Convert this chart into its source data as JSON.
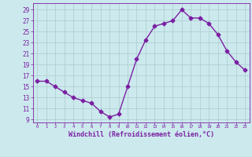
{
  "x": [
    0,
    1,
    2,
    3,
    4,
    5,
    6,
    7,
    8,
    9,
    10,
    11,
    12,
    13,
    14,
    15,
    16,
    17,
    18,
    19,
    20,
    21,
    22,
    23
  ],
  "y": [
    16.0,
    16.0,
    15.0,
    14.0,
    13.0,
    12.5,
    12.0,
    10.5,
    9.5,
    10.0,
    15.0,
    20.0,
    23.5,
    26.0,
    26.5,
    27.0,
    29.0,
    27.5,
    27.5,
    26.5,
    24.5,
    21.5,
    19.5,
    18.0
  ],
  "line_color": "#7B1FA2",
  "marker": "D",
  "markersize": 2.5,
  "linewidth": 1.0,
  "xlabel": "Windchill (Refroidissement éolien,°C)",
  "xlabel_fontsize": 6,
  "ylabel_ticks": [
    9,
    11,
    13,
    15,
    17,
    19,
    21,
    23,
    25,
    27,
    29
  ],
  "xtick_labels": [
    "0",
    "1",
    "2",
    "3",
    "4",
    "5",
    "6",
    "7",
    "8",
    "9",
    "10",
    "11",
    "12",
    "13",
    "14",
    "15",
    "16",
    "17",
    "18",
    "19",
    "20",
    "21",
    "22",
    "23"
  ],
  "ylim": [
    8.5,
    30.2
  ],
  "xlim": [
    -0.5,
    23.5
  ],
  "bg_color": "#cce9ee",
  "grid_color": "#aacccc",
  "tick_color": "#7B1FA2",
  "label_color": "#7B1FA2"
}
